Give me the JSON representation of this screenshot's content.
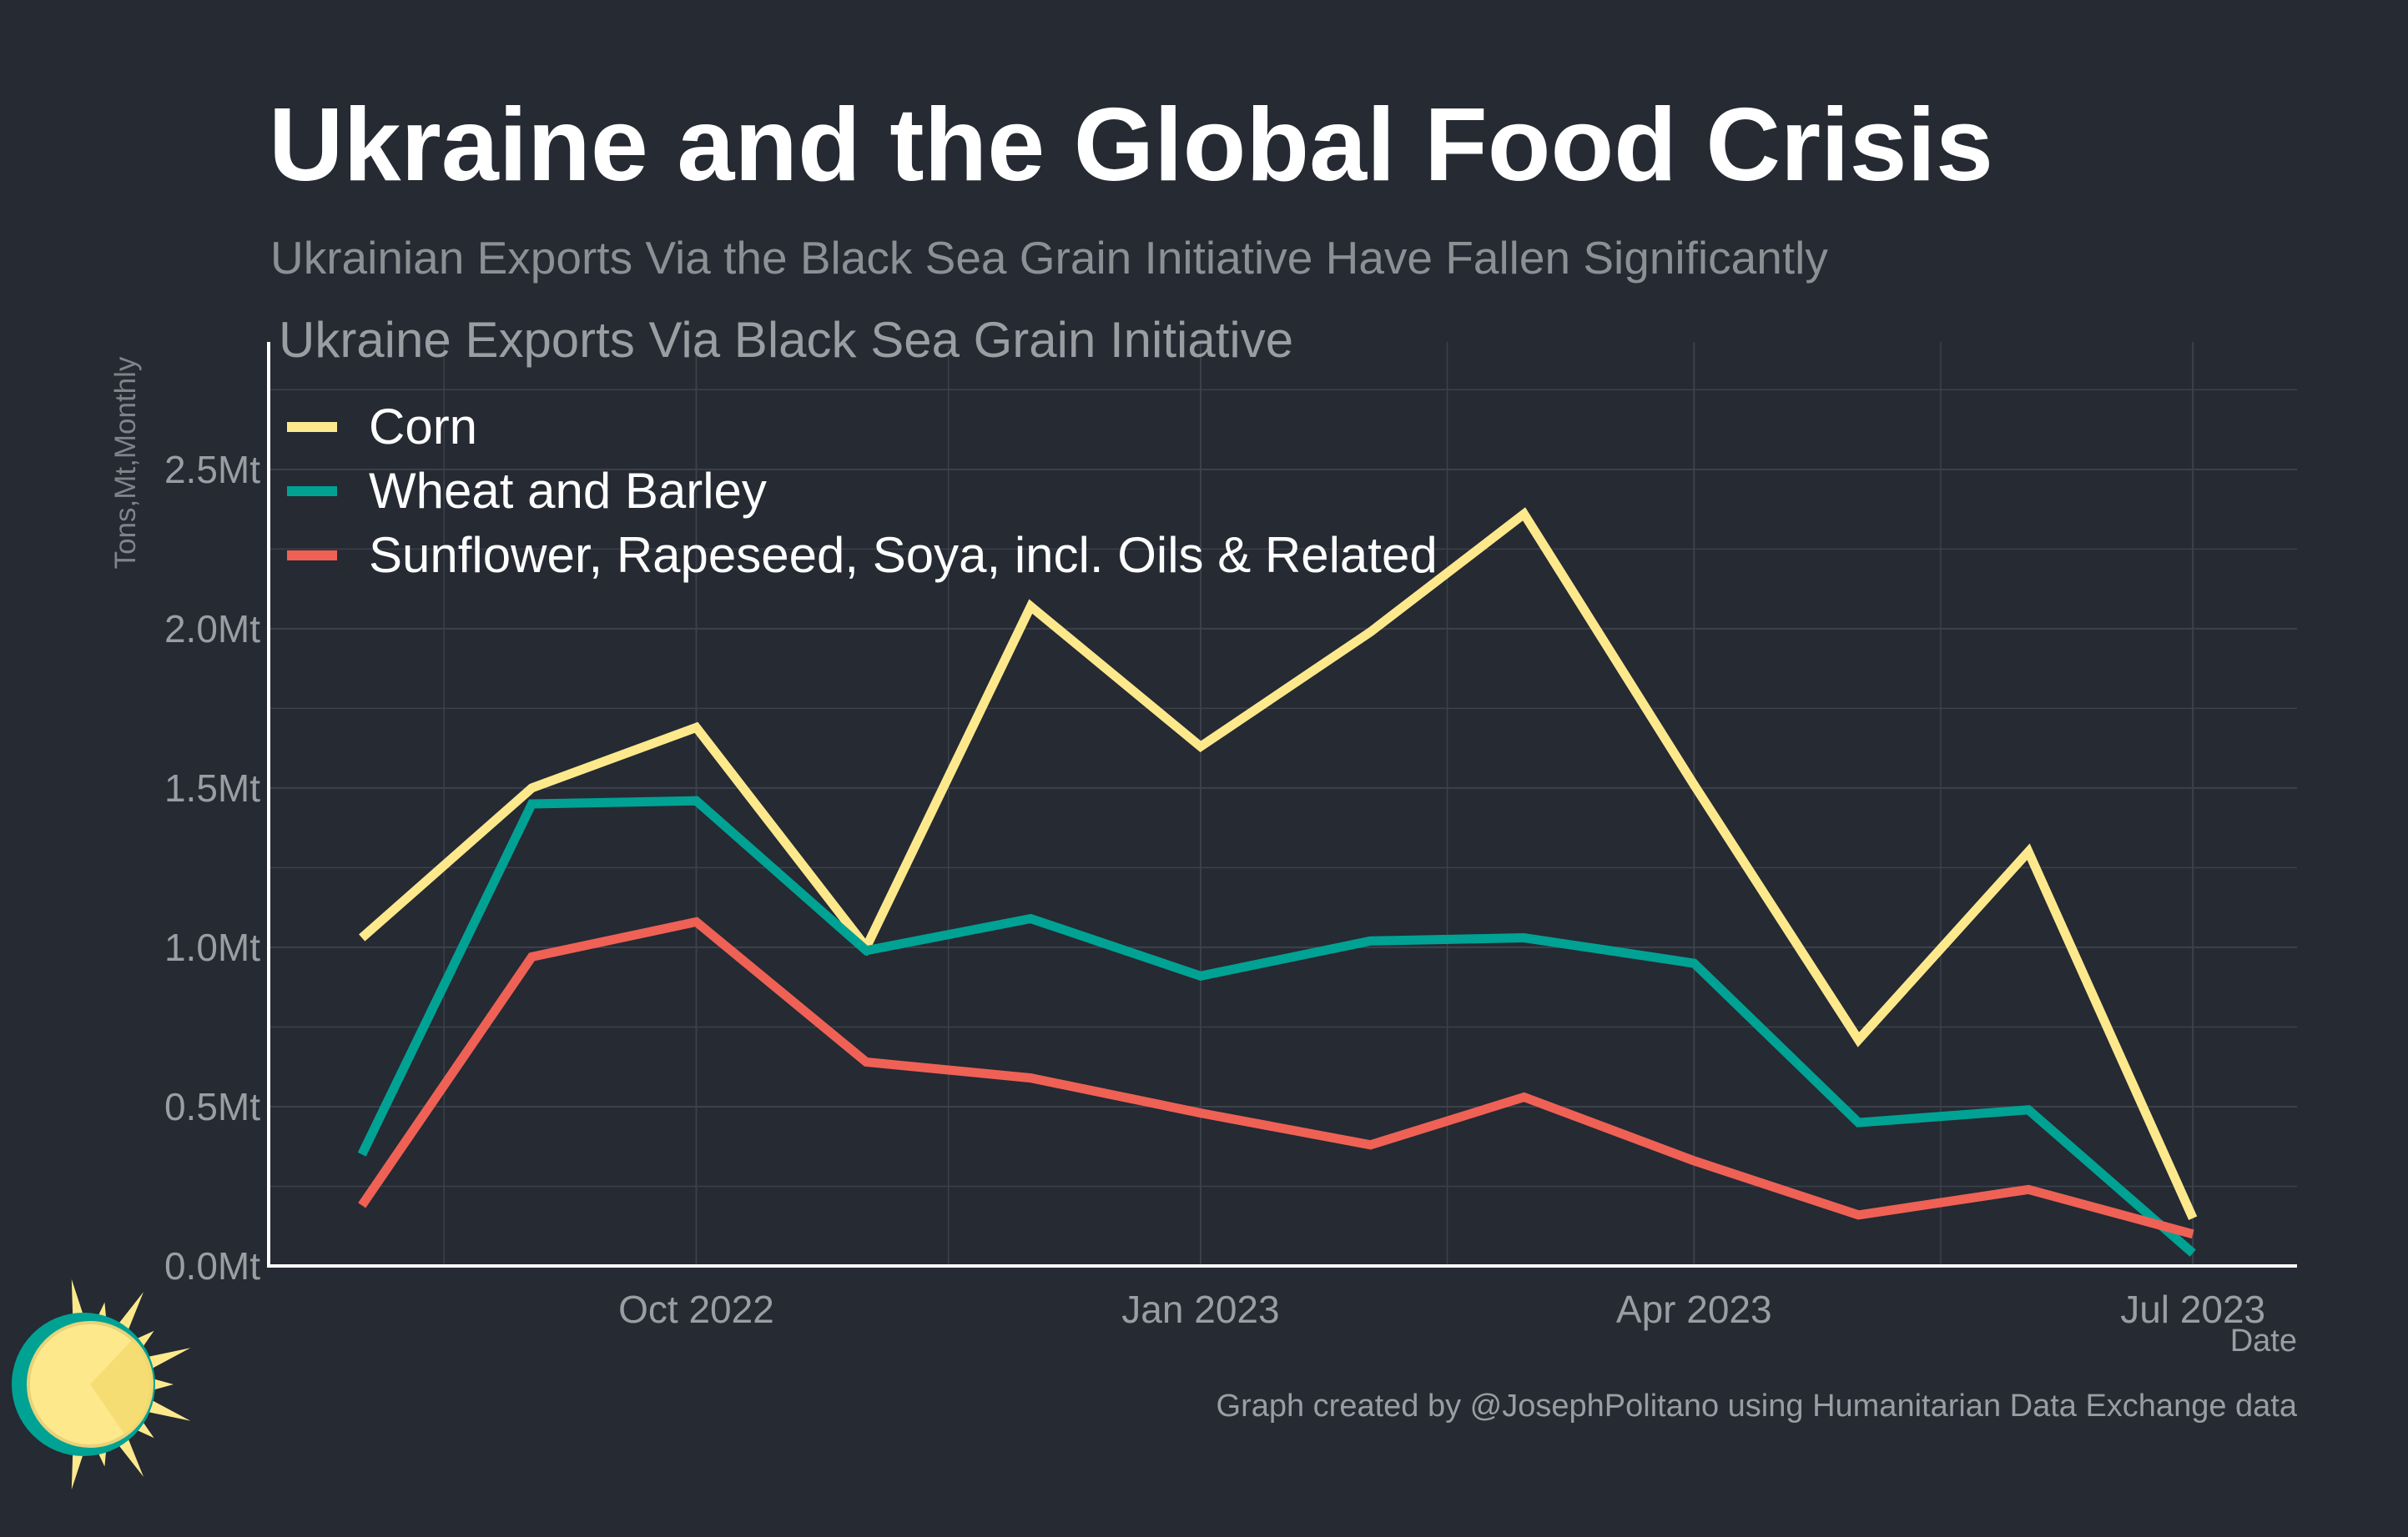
{
  "header": {
    "title": "Ukraine and the Global Food Crisis",
    "subtitle": "Ukrainian Exports Via the Black Sea Grain Initiative Have Fallen Significantly"
  },
  "footer": {
    "credit": "Graph created by @JosephPolitano using Humanitarian Data Exchange data"
  },
  "colors": {
    "background": "#252a33",
    "grid": "#3c414b",
    "axis": "#ffffff",
    "tick_text": "#9a9da2",
    "corn": "#fde98c",
    "wheat": "#00a294",
    "oilseed": "#ef6155",
    "logo_sun": "#fde98c",
    "logo_ring": "#00a294"
  },
  "chart_data": {
    "type": "line",
    "title": "Ukraine Exports Via Black Sea Grain Initiative",
    "xlabel": "Date",
    "ylabel": "Tons,Mt,Monthly",
    "x": [
      "2022-08-01",
      "2022-09-01",
      "2022-10-01",
      "2022-11-01",
      "2022-12-01",
      "2023-01-01",
      "2023-02-01",
      "2023-03-01",
      "2023-04-01",
      "2023-05-01",
      "2023-06-01",
      "2023-07-01"
    ],
    "x_ticks": [
      {
        "date": "2022-10-01",
        "label": "Oct 2022"
      },
      {
        "date": "2023-01-01",
        "label": "Jan 2023"
      },
      {
        "date": "2023-04-01",
        "label": "Apr 2023"
      },
      {
        "date": "2023-07-01",
        "label": "Jul 2023"
      }
    ],
    "xlim": [
      "2022-07-15",
      "2023-07-20"
    ],
    "ylim": [
      0,
      2.9
    ],
    "y_ticks": [
      {
        "value": 0,
        "label": "0.0Mt"
      },
      {
        "value": 0.5,
        "label": "0.5Mt"
      },
      {
        "value": 1.0,
        "label": "1.0Mt"
      },
      {
        "value": 1.5,
        "label": "1.5Mt"
      },
      {
        "value": 2.0,
        "label": "2.0Mt"
      },
      {
        "value": 2.5,
        "label": "2.5Mt"
      }
    ],
    "grid": true,
    "legend_position": "top-left",
    "series": [
      {
        "name": "Corn",
        "color_key": "corn",
        "values": [
          1.03,
          1.5,
          1.69,
          1.0,
          2.07,
          1.63,
          1.99,
          2.36,
          1.51,
          0.71,
          1.3,
          0.15
        ]
      },
      {
        "name": "Wheat and Barley",
        "color_key": "wheat",
        "values": [
          0.35,
          1.45,
          1.46,
          0.99,
          1.09,
          0.91,
          1.02,
          1.03,
          0.95,
          0.45,
          0.49,
          0.04
        ]
      },
      {
        "name": "Sunflower, Rapeseed, Soya, incl. Oils & Related",
        "color_key": "oilseed",
        "values": [
          0.19,
          0.97,
          1.08,
          0.64,
          0.59,
          0.48,
          0.38,
          0.53,
          0.33,
          0.16,
          0.24,
          0.1
        ]
      }
    ]
  }
}
